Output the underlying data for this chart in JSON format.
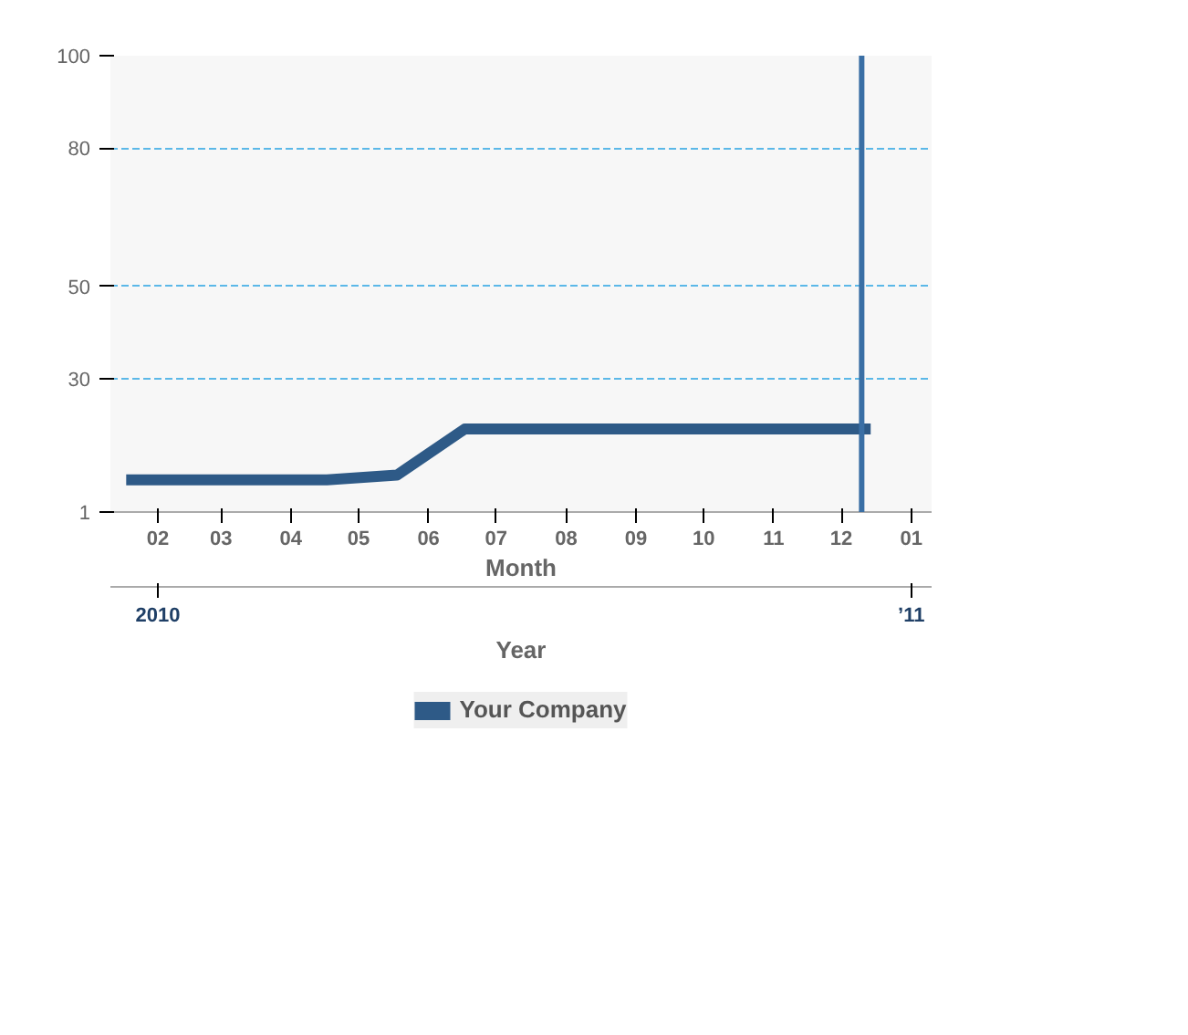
{
  "chart_data": {
    "type": "line",
    "xlabel": "Month",
    "x2label": "Year",
    "x": [
      "2010-02-01",
      "2010-05-01",
      "2010-06-01",
      "2010-07-01",
      "2010-12-28"
    ],
    "series": [
      {
        "name": "Your Company",
        "color": "#2e5a87",
        "values": [
          8,
          8,
          9,
          19,
          19
        ]
      }
    ],
    "xlim": [
      "2010-01-25",
      "2011-01-24"
    ],
    "xticks": [
      {
        "value": "2010-02-15",
        "label": "02"
      },
      {
        "value": "2010-03-15",
        "label": "03"
      },
      {
        "value": "2010-04-15",
        "label": "04"
      },
      {
        "value": "2010-05-15",
        "label": "05"
      },
      {
        "value": "2010-06-15",
        "label": "06"
      },
      {
        "value": "2010-07-15",
        "label": "07"
      },
      {
        "value": "2010-08-15",
        "label": "08"
      },
      {
        "value": "2010-09-15",
        "label": "09"
      },
      {
        "value": "2010-10-15",
        "label": "10"
      },
      {
        "value": "2010-11-15",
        "label": "11"
      },
      {
        "value": "2010-12-15",
        "label": "12"
      },
      {
        "value": "2011-01-15",
        "label": "01"
      }
    ],
    "x2lim": [
      "2010-01-25",
      "2011-01-24"
    ],
    "x2ticks": [
      {
        "value": "2010-02-15",
        "label": "2010"
      },
      {
        "value": "2011-01-15",
        "label": "’11"
      }
    ],
    "ylim": [
      1,
      100
    ],
    "yticks": [
      1,
      30,
      50,
      80,
      100
    ],
    "ref_lines": [
      {
        "axis": "x",
        "value": "2010-12-24",
        "color": "#3a6fa5"
      }
    ],
    "grid": "y",
    "legend": "bottom",
    "marker": "none",
    "line_style": "solid"
  }
}
